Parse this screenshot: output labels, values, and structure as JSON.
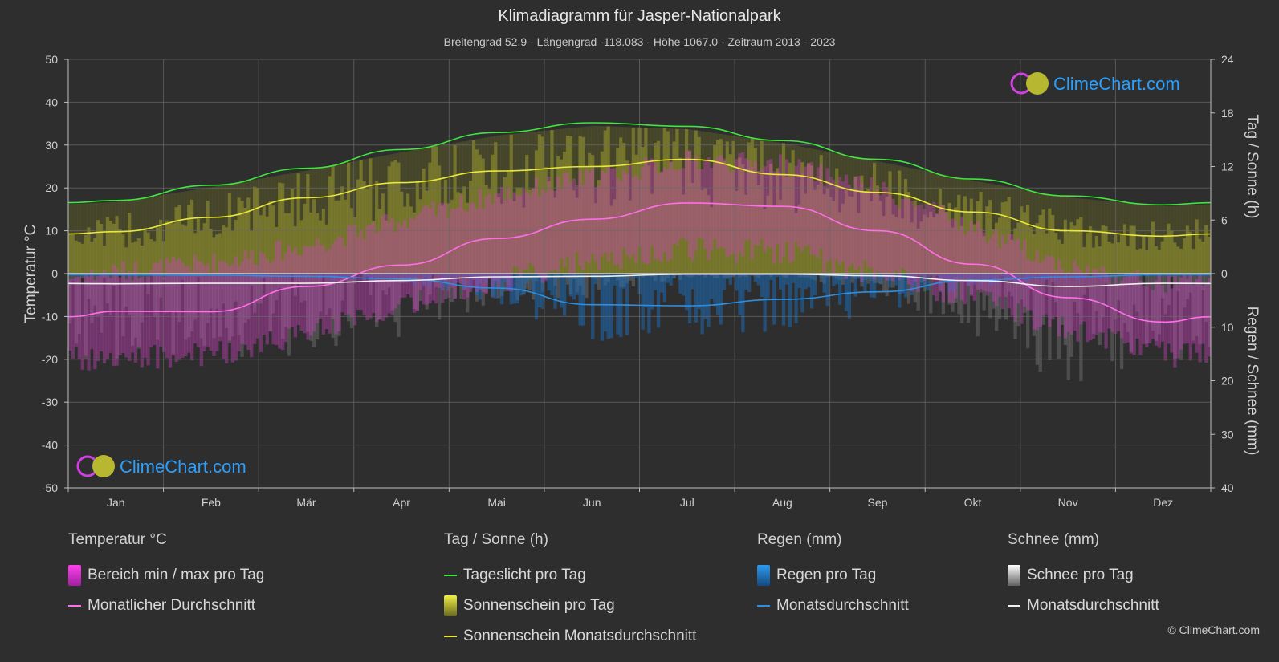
{
  "header": {
    "title": "Klimadiagramm für Jasper-Nationalpark",
    "subtitle": "Breitengrad 52.9 - Längengrad -118.083 - Höhe 1067.0 - Zeitraum 2013 - 2023"
  },
  "watermark": "ClimeChart.com",
  "copyright": "© ClimeChart.com",
  "colors": {
    "background": "#2e2e2e",
    "daylight": "#3ee63e",
    "sunshine_avg": "#e8e83a",
    "temp_avg": "#ff6ee8",
    "rain_avg": "#2e8fe0",
    "snow_avg": "#f0f0f0",
    "temp_range": "#d040c0",
    "sunshine_bar": "#9a9a30",
    "rain_bar": "#1e6ab0",
    "snow_bar": "#8a8a8a",
    "logo_text": "#2aa0ff"
  },
  "chart_data": {
    "type": "line",
    "categories": [
      "Jan",
      "Feb",
      "Mär",
      "Apr",
      "Mai",
      "Jun",
      "Jul",
      "Aug",
      "Sep",
      "Okt",
      "Nov",
      "Dez"
    ],
    "left_axis": {
      "label": "Temperatur °C",
      "ylim": [
        -50,
        50
      ],
      "ticks": [
        50,
        40,
        30,
        20,
        10,
        0,
        -10,
        -20,
        -30,
        -40,
        -50
      ]
    },
    "right_axis_top": {
      "label": "Tag / Sonne (h)",
      "ylim": [
        0,
        24
      ],
      "ticks": [
        24,
        18,
        12,
        6,
        0
      ]
    },
    "right_axis_bottom": {
      "label": "Regen / Schnee (mm)",
      "ylim": [
        0,
        40
      ],
      "ticks": [
        10,
        20,
        30,
        40
      ]
    },
    "grid": true,
    "series": [
      {
        "name": "Tageslicht pro Tag",
        "axis": "sun_h",
        "values": [
          8.2,
          9.9,
          11.8,
          13.9,
          15.8,
          16.9,
          16.5,
          14.9,
          12.8,
          10.6,
          8.7,
          7.7
        ]
      },
      {
        "name": "Sonnenschein Monatsdurchschnitt",
        "axis": "sun_h",
        "values": [
          4.7,
          6.3,
          8.5,
          10.2,
          11.5,
          12.0,
          12.8,
          11.1,
          9.1,
          6.9,
          4.8,
          4.2
        ]
      },
      {
        "name": "Monatlicher Durchschnitt",
        "axis": "temp_c",
        "values": [
          -8.8,
          -8.9,
          -3.0,
          2.0,
          8.2,
          12.7,
          16.5,
          15.7,
          10.0,
          2.2,
          -5.6,
          -11.3
        ]
      },
      {
        "name": "Monatsdurchschnitt Regen",
        "axis": "precip_mm",
        "values": [
          0.2,
          0.3,
          0.5,
          1.0,
          2.7,
          5.8,
          6.0,
          4.8,
          3.4,
          1.2,
          0.6,
          0.2
        ]
      },
      {
        "name": "Monatsdurchschnitt Schnee",
        "axis": "precip_mm",
        "values": [
          1.9,
          1.8,
          1.8,
          1.3,
          0.6,
          0.5,
          0.1,
          0.1,
          0.4,
          1.3,
          2.4,
          1.8
        ]
      }
    ],
    "daily_temp_range": {
      "name": "Bereich min / max pro Tag",
      "min": [
        -17,
        -16,
        -11,
        -4,
        1,
        6,
        9,
        8,
        3,
        -3,
        -10,
        -16
      ],
      "max": [
        -2,
        0,
        4,
        10,
        16,
        20,
        24,
        23,
        17,
        8,
        -1,
        -5
      ]
    }
  },
  "legend": {
    "groups": [
      {
        "title": "Temperatur °C",
        "items": [
          {
            "label": "Bereich min / max pro Tag",
            "kind": "box",
            "color": "#e030d8"
          },
          {
            "label": "Monatlicher Durchschnitt",
            "kind": "line",
            "color": "#ff6ee8"
          }
        ]
      },
      {
        "title": "Tag / Sonne (h)",
        "items": [
          {
            "label": "Tageslicht pro Tag",
            "kind": "line",
            "color": "#3ee63e"
          },
          {
            "label": "Sonnenschein pro Tag",
            "kind": "box",
            "color": "#d6d640"
          },
          {
            "label": "Sonnenschein Monatsdurchschnitt",
            "kind": "line",
            "color": "#e8e83a"
          }
        ]
      },
      {
        "title": "Regen (mm)",
        "items": [
          {
            "label": "Regen pro Tag",
            "kind": "box",
            "color": "#1e7fd8"
          },
          {
            "label": "Monatsdurchschnitt",
            "kind": "line",
            "color": "#2e8fe0"
          }
        ]
      },
      {
        "title": "Schnee (mm)",
        "items": [
          {
            "label": "Schnee pro Tag",
            "kind": "box",
            "color": "#d8d8d8"
          },
          {
            "label": "Monatsdurchschnitt",
            "kind": "line",
            "color": "#f0f0f0"
          }
        ]
      }
    ]
  }
}
